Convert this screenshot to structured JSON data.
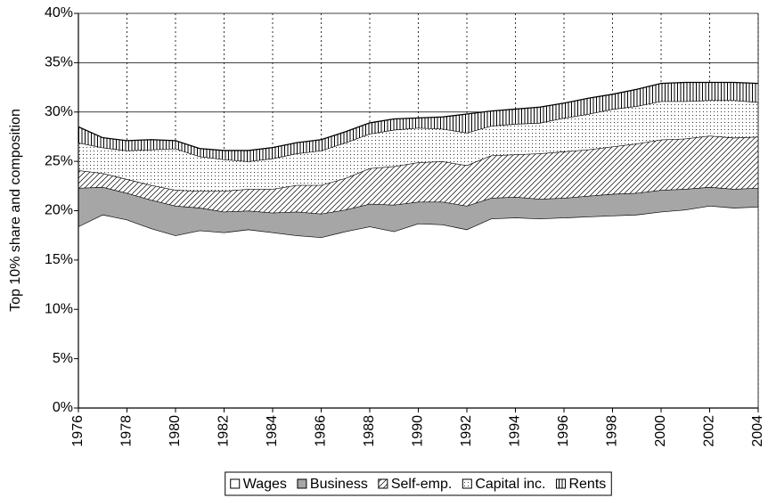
{
  "chart_data": {
    "type": "stacked-area",
    "y_label": "Top 10% share and composition",
    "x": [
      1976,
      1977,
      1978,
      1979,
      1980,
      1981,
      1982,
      1983,
      1984,
      1985,
      1986,
      1987,
      1988,
      1989,
      1990,
      1991,
      1992,
      1993,
      1994,
      1995,
      1996,
      1997,
      1998,
      1999,
      2000,
      2001,
      2002,
      2003,
      2004
    ],
    "xlim": [
      1976,
      2004
    ],
    "xticks": [
      1976,
      1978,
      1980,
      1982,
      1984,
      1986,
      1988,
      1990,
      1992,
      1994,
      1996,
      1998,
      2000,
      2002,
      2004
    ],
    "ylim": [
      0,
      40
    ],
    "yticks": [
      {
        "value": 0,
        "label": "0%"
      },
      {
        "value": 5,
        "label": "5%"
      },
      {
        "value": 10,
        "label": "10%"
      },
      {
        "value": 15,
        "label": "15%"
      },
      {
        "value": 20,
        "label": "20%"
      },
      {
        "value": 25,
        "label": "25%"
      },
      {
        "value": 30,
        "label": "30%"
      },
      {
        "value": 35,
        "label": "35%"
      },
      {
        "value": 40,
        "label": "40%"
      }
    ],
    "grid": true,
    "legend": "bottom",
    "series": [
      {
        "name": "Wages",
        "color": "#ffffff",
        "pattern": "solid",
        "values": [
          18.4,
          19.6,
          19.1,
          18.2,
          17.5,
          18.0,
          17.8,
          18.1,
          17.8,
          17.5,
          17.3,
          17.9,
          18.4,
          17.9,
          18.7,
          18.6,
          18.1,
          19.2,
          19.3,
          19.2,
          19.3,
          19.4,
          19.5,
          19.6,
          19.9,
          20.1,
          20.5,
          20.3,
          20.4
        ]
      },
      {
        "name": "Business",
        "color": "#a6a6a6",
        "pattern": "solid",
        "values": [
          3.9,
          2.8,
          2.7,
          2.9,
          3.0,
          2.3,
          2.1,
          1.9,
          2.0,
          2.4,
          2.4,
          2.2,
          2.3,
          2.7,
          2.2,
          2.3,
          2.4,
          2.1,
          2.1,
          2.0,
          2.0,
          2.1,
          2.2,
          2.2,
          2.2,
          2.1,
          1.9,
          1.9,
          1.9
        ]
      },
      {
        "name": "Self-emp.",
        "color": "#ffffff",
        "pattern": "hatch",
        "values": [
          1.8,
          1.4,
          1.4,
          1.5,
          1.6,
          1.7,
          2.1,
          2.2,
          2.4,
          2.7,
          2.9,
          3.2,
          3.6,
          3.9,
          4.0,
          4.1,
          4.1,
          4.3,
          4.3,
          4.6,
          4.7,
          4.7,
          4.8,
          5.0,
          5.1,
          5.1,
          5.2,
          5.2,
          5.2
        ]
      },
      {
        "name": "Capital inc.",
        "color": "#ffffff",
        "pattern": "dots",
        "values": [
          2.8,
          2.6,
          2.9,
          3.6,
          4.2,
          3.5,
          3.2,
          2.8,
          3.1,
          3.2,
          3.5,
          3.6,
          3.5,
          3.7,
          3.5,
          3.3,
          3.3,
          3.0,
          3.1,
          3.1,
          3.4,
          3.6,
          3.8,
          3.8,
          3.9,
          3.8,
          3.6,
          3.8,
          3.5
        ]
      },
      {
        "name": "Rents",
        "color": "#ffffff",
        "pattern": "vertical",
        "values": [
          1.6,
          1.0,
          1.0,
          1.0,
          0.8,
          0.8,
          0.9,
          1.1,
          1.1,
          1.1,
          1.1,
          1.1,
          1.1,
          1.1,
          1.0,
          1.2,
          1.9,
          1.5,
          1.5,
          1.6,
          1.5,
          1.6,
          1.5,
          1.7,
          1.8,
          1.9,
          1.8,
          1.8,
          1.9
        ]
      }
    ]
  }
}
